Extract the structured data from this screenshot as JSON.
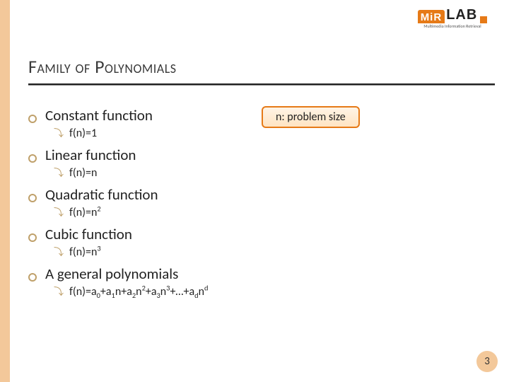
{
  "colors": {
    "accent": "#e67a17",
    "accent_light": "#f3c89a",
    "bullet": "#bfa06a",
    "text": "#222222",
    "title": "#3a3a3a"
  },
  "logo": {
    "left": "MiR",
    "right": "LAB",
    "sub": "Multimedia Information Retrieval"
  },
  "title": "Family of Polynomials",
  "callout": "n: problem size",
  "items": [
    {
      "label": "Constant function",
      "sub_html": "f(n)=1"
    },
    {
      "label": "Linear function",
      "sub_html": "f(n)=n"
    },
    {
      "label": "Quadratic function",
      "sub_html": "f(n)=n<sup>2</sup>"
    },
    {
      "label": "Cubic function",
      "sub_html": "f(n)=n<sup>3</sup>"
    },
    {
      "label": "A general polynomials",
      "sub_html": "f(n)=a<sub class='ss'>0</sub>+a<sub class='ss'>1</sub>n+a<sub class='ss'>2</sub>n<sup>2</sup>+a<sub class='ss'>3</sub>n<sup>3</sup>+…+a<sub class='ss'>d</sub>n<sup>d</sup>"
    }
  ],
  "page_number": "3"
}
